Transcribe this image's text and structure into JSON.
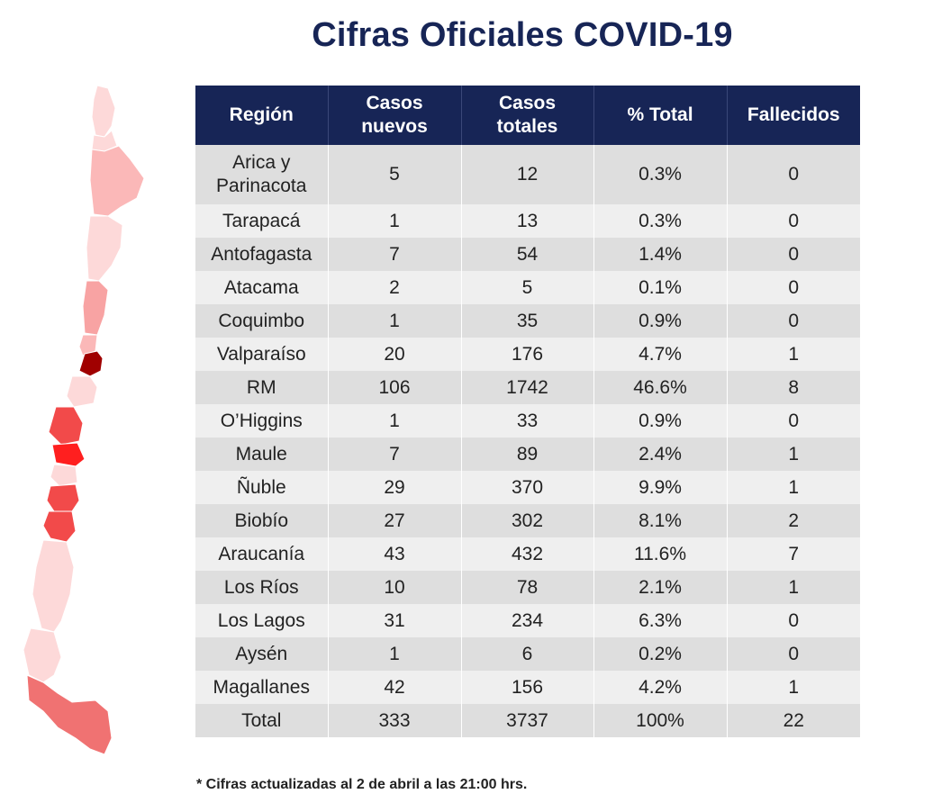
{
  "title": "Cifras Oficiales COVID-19",
  "columns": {
    "region": "Región",
    "casos_nuevos_1": "Casos",
    "casos_nuevos_2": "nuevos",
    "casos_totales_1": "Casos",
    "casos_totales_2": "totales",
    "pct_total": "% Total",
    "fallecidos": "Fallecidos"
  },
  "rows": [
    {
      "region_1": "Arica y",
      "region_2": "Parinacota",
      "nuevos": "5",
      "totales": "12",
      "pct": "0.3%",
      "fallecidos": "0"
    },
    {
      "region": "Tarapacá",
      "nuevos": "1",
      "totales": "13",
      "pct": "0.3%",
      "fallecidos": "0"
    },
    {
      "region": "Antofagasta",
      "nuevos": "7",
      "totales": "54",
      "pct": "1.4%",
      "fallecidos": "0"
    },
    {
      "region": "Atacama",
      "nuevos": "2",
      "totales": "5",
      "pct": "0.1%",
      "fallecidos": "0"
    },
    {
      "region": "Coquimbo",
      "nuevos": "1",
      "totales": "35",
      "pct": "0.9%",
      "fallecidos": "0"
    },
    {
      "region": "Valparaíso",
      "nuevos": "20",
      "totales": "176",
      "pct": "4.7%",
      "fallecidos": "1"
    },
    {
      "region": "RM",
      "nuevos": "106",
      "totales": "1742",
      "pct": "46.6%",
      "fallecidos": "8"
    },
    {
      "region": "O’Higgins",
      "nuevos": "1",
      "totales": "33",
      "pct": "0.9%",
      "fallecidos": "0"
    },
    {
      "region": "Maule",
      "nuevos": "7",
      "totales": "89",
      "pct": "2.4%",
      "fallecidos": "1"
    },
    {
      "region": "Ñuble",
      "nuevos": "29",
      "totales": "370",
      "pct": "9.9%",
      "fallecidos": "1"
    },
    {
      "region": "Biobío",
      "nuevos": "27",
      "totales": "302",
      "pct": "8.1%",
      "fallecidos": "2"
    },
    {
      "region": "Araucanía",
      "nuevos": "43",
      "totales": "432",
      "pct": "11.6%",
      "fallecidos": "7"
    },
    {
      "region": "Los Ríos",
      "nuevos": "10",
      "totales": "78",
      "pct": "2.1%",
      "fallecidos": "1"
    },
    {
      "region": "Los Lagos",
      "nuevos": "31",
      "totales": "234",
      "pct": "6.3%",
      "fallecidos": "0"
    },
    {
      "region": "Aysén",
      "nuevos": "1",
      "totales": "6",
      "pct": "0.2%",
      "fallecidos": "0"
    },
    {
      "region": "Magallanes",
      "nuevos": "42",
      "totales": "156",
      "pct": "4.2%",
      "fallecidos": "1"
    },
    {
      "region": "Total",
      "nuevos": "333",
      "totales": "3737",
      "pct": "100%",
      "fallecidos": "22"
    }
  ],
  "footnote": "* Cifras actualizadas al 2 de abril a las 21:00 hrs.",
  "map": {
    "icon": "chile-regions-map-icon",
    "colors": {
      "lightest": "#fdd9d9",
      "light": "#fbb8b8",
      "medium": "#f8a3a3",
      "strong": "#f07272",
      "red": "#f24a4a",
      "bright": "#ff1f1f",
      "dark": "#a00000"
    }
  }
}
